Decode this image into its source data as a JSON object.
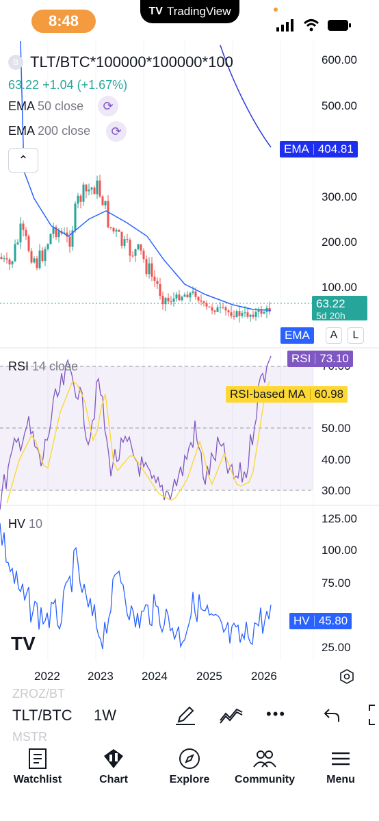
{
  "status_bar": {
    "time": "8:48",
    "app_banner": "TradingView"
  },
  "symbol": {
    "badge": "B",
    "title": "TLT/BTC*100000*100000*100",
    "last": "63.22",
    "change": "+1.04",
    "change_pct": "(+1.67%)"
  },
  "indicators": [
    {
      "name": "EMA",
      "params": "50 close"
    },
    {
      "name": "EMA",
      "params": "200 close"
    }
  ],
  "price_axis": [
    "600.00",
    "500.00",
    "300.00",
    "200.00",
    "100.00"
  ],
  "price_tags": {
    "ema": {
      "label": "EMA",
      "value": "404.81",
      "color": "#1d2ef0"
    },
    "last": {
      "value": "63.22",
      "countdown": "5d 20h",
      "color": "#26a69a"
    }
  },
  "scale_controls": {
    "ema": "EMA",
    "auto": "A",
    "log": "L"
  },
  "rsi": {
    "title": "RSI",
    "params": "14 close",
    "axis": [
      "70.00",
      "50.00",
      "40.00",
      "30.00"
    ],
    "tag_label": "RSI",
    "tag_value": "73.10",
    "ma_label": "RSI-based MA",
    "ma_value": "60.98",
    "rsi_color": "#7e57c2",
    "ma_color": "#fdd835"
  },
  "hv": {
    "title": "HV",
    "params": "10",
    "axis": [
      "125.00",
      "100.00",
      "75.00",
      "25.00"
    ],
    "tag_label": "HV",
    "tag_value": "45.80",
    "color": "#2962ff"
  },
  "time_axis": [
    "2022",
    "2023",
    "2024",
    "2025",
    "2026"
  ],
  "toolbar": {
    "symbol": "TLT/BTC",
    "interval": "1W",
    "ghost_above": "ZROZ/BT",
    "ghost_below": "MSTR"
  },
  "nav": [
    {
      "label": "Watchlist",
      "icon": "watchlist-icon"
    },
    {
      "label": "Chart",
      "icon": "chart-icon"
    },
    {
      "label": "Explore",
      "icon": "compass-icon"
    },
    {
      "label": "Community",
      "icon": "people-icon"
    },
    {
      "label": "Menu",
      "icon": "hamburger-icon"
    }
  ]
}
